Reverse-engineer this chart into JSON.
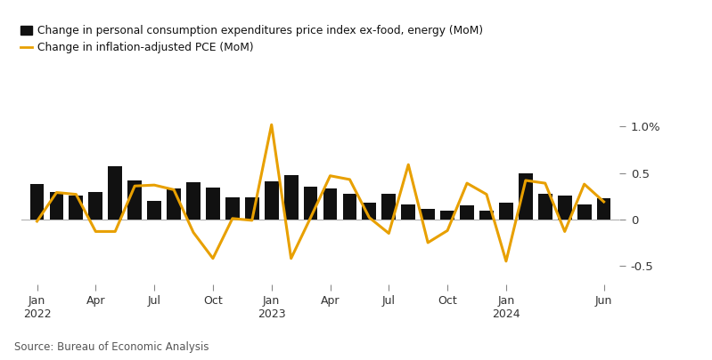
{
  "bar_data": [
    0.38,
    0.3,
    0.26,
    0.3,
    0.57,
    0.42,
    0.2,
    0.33,
    0.4,
    0.34,
    0.24,
    0.24,
    0.41,
    0.48,
    0.35,
    0.33,
    0.28,
    0.18,
    0.28,
    0.16,
    0.11,
    0.09,
    0.15,
    0.09,
    0.18,
    0.5,
    0.28,
    0.26,
    0.16,
    0.23
  ],
  "line_data": [
    -0.02,
    0.29,
    0.27,
    -0.13,
    -0.13,
    0.36,
    0.37,
    0.32,
    -0.14,
    -0.42,
    0.01,
    -0.01,
    1.02,
    -0.42,
    0.02,
    0.47,
    0.43,
    0.02,
    -0.15,
    0.59,
    -0.25,
    -0.12,
    0.39,
    0.27,
    -0.45,
    0.42,
    0.39,
    -0.13,
    0.38,
    0.19
  ],
  "ylim": [
    -0.7,
    1.2
  ],
  "bar_color": "#111111",
  "line_color": "#e8a000",
  "bg_color": "#ffffff",
  "legend_bar_label": "Change in personal consumption expenditures price index ex-food, energy (MoM)",
  "legend_line_label": "Change in inflation-adjusted PCE (MoM)",
  "source_text": "Source: Bureau of Economic Analysis",
  "tick_positions": [
    0,
    3,
    6,
    9,
    12,
    15,
    18,
    21,
    24,
    29
  ],
  "tick_labels": [
    "Jan\n2022",
    "Apr",
    "Jul",
    "Oct",
    "Jan\n2023",
    "Apr",
    "Jul",
    "Oct",
    "Jan\n2024",
    "Jun"
  ],
  "ytick_vals": [
    -0.5,
    0,
    0.5,
    1.0
  ],
  "ytick_labels": [
    "-0.5",
    "0",
    "0.5",
    "1.0%"
  ]
}
